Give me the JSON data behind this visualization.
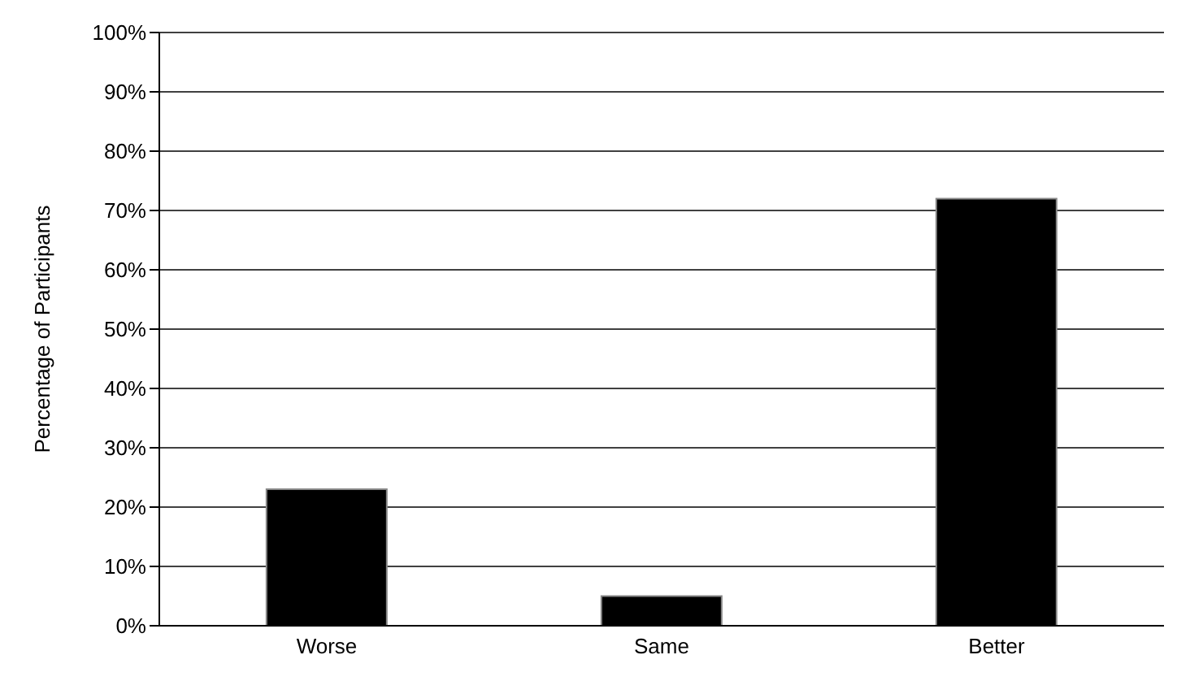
{
  "chart_data": {
    "type": "bar",
    "ylabel": "Percentage of Participants",
    "categories": [
      "Worse",
      "Same",
      "Better"
    ],
    "values": [
      23,
      5,
      72
    ],
    "color": "#000000",
    "ylim": [
      0,
      100
    ],
    "yticks": [
      {
        "value": 0,
        "label": "0%"
      },
      {
        "value": 10,
        "label": "10%"
      },
      {
        "value": 20,
        "label": "20%"
      },
      {
        "value": 30,
        "label": "30%"
      },
      {
        "value": 40,
        "label": "40%"
      },
      {
        "value": 50,
        "label": "50%"
      },
      {
        "value": 60,
        "label": "60%"
      },
      {
        "value": 70,
        "label": "70%"
      },
      {
        "value": 80,
        "label": "80%"
      },
      {
        "value": 90,
        "label": "90%"
      },
      {
        "value": 100,
        "label": "100%"
      }
    ],
    "grid": "y"
  }
}
